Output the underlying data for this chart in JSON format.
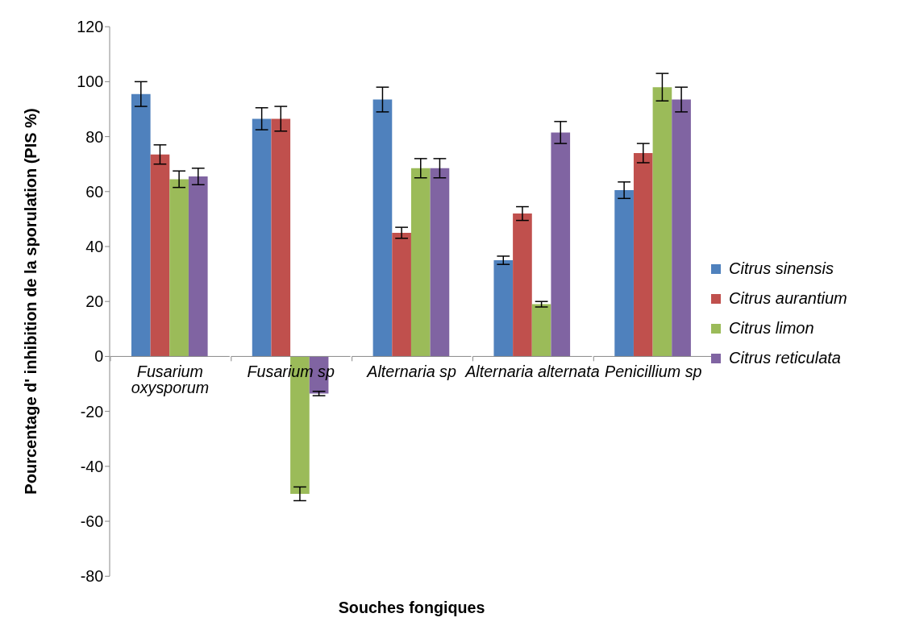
{
  "chart_data": {
    "type": "bar",
    "xlabel": "Souches fongiques",
    "ylabel": "Pourcentage d' inhibition de la sporulation (PIS %)",
    "categories": [
      "Fusarium oxysporum",
      "Fusarium sp",
      "Alternaria sp",
      "Alternaria alternata",
      "Penicillium sp"
    ],
    "series": [
      {
        "name": "Citrus sinensis",
        "color": "#4f81bd",
        "values": [
          95.5,
          86.5,
          93.5,
          35,
          60.5
        ],
        "errors": [
          4.5,
          4,
          4.5,
          1.5,
          3
        ]
      },
      {
        "name": "Citrus aurantium",
        "color": "#c0504d",
        "values": [
          73.5,
          86.5,
          45,
          52,
          74
        ],
        "errors": [
          3.5,
          4.5,
          2,
          2.5,
          3.5
        ]
      },
      {
        "name": "Citrus limon",
        "color": "#9bbb59",
        "values": [
          64.5,
          -50,
          68.5,
          19,
          98
        ],
        "errors": [
          3,
          2.5,
          3.5,
          1,
          5
        ]
      },
      {
        "name": "Citrus reticulata",
        "color": "#8064a2",
        "values": [
          65.5,
          -13.5,
          68.5,
          81.5,
          93.5
        ],
        "errors": [
          3,
          0.8,
          3.5,
          4,
          4.5
        ]
      }
    ],
    "ylim": [
      -80,
      120
    ],
    "yticks": [
      -80,
      -60,
      -40,
      -20,
      0,
      20,
      40,
      60,
      80,
      100,
      120
    ],
    "grid": false,
    "legend": "right"
  }
}
